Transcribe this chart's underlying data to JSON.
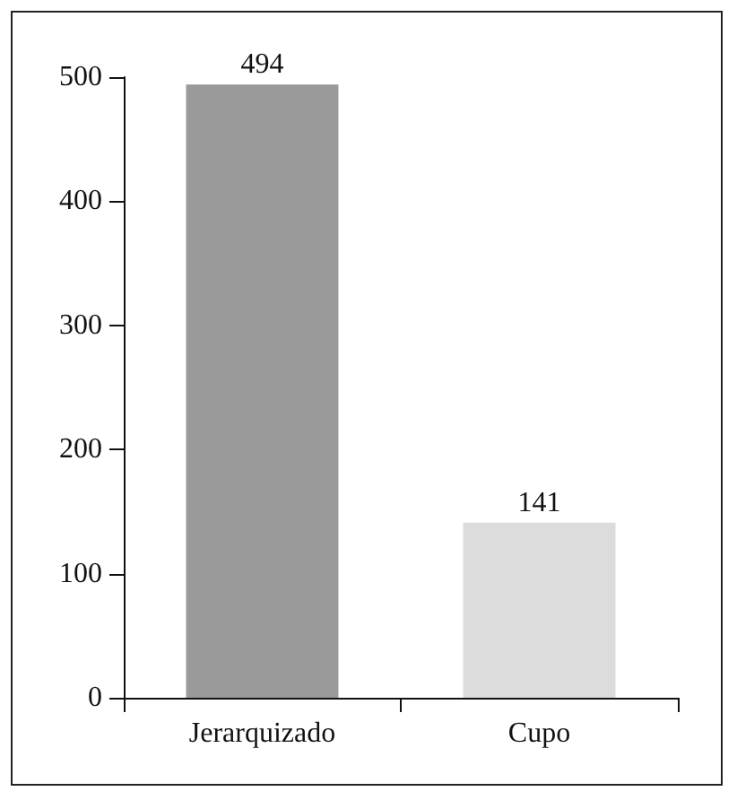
{
  "chart_data": {
    "type": "bar",
    "categories": [
      "Jerarquizado",
      "Cupo"
    ],
    "values": [
      494,
      141
    ],
    "colors": [
      "#9a9a9a",
      "#dcdcdc"
    ],
    "ylim": [
      0,
      500
    ],
    "yticks": [
      0,
      100,
      200,
      300,
      400,
      500
    ],
    "data_labels": true,
    "grid": false
  }
}
